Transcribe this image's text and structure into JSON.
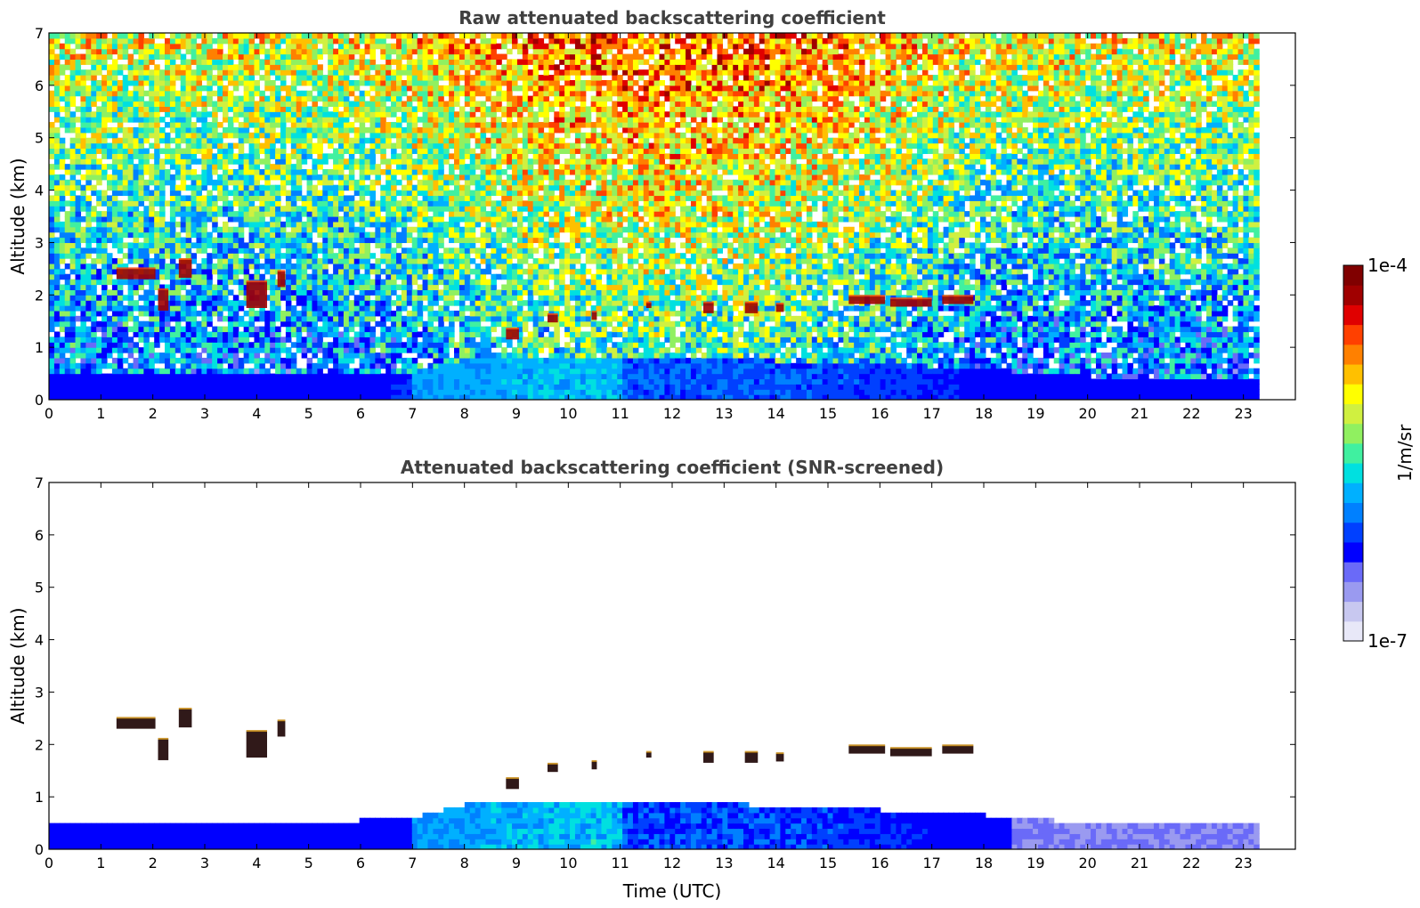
{
  "chart_data": [
    {
      "type": "heatmap",
      "title": "Raw attenuated backscattering coefficient",
      "xlabel": "",
      "ylabel": "Altitude (km)",
      "xlim": [
        0,
        24
      ],
      "ylim": [
        0,
        7
      ],
      "xticks": [
        "0",
        "1",
        "2",
        "3",
        "4",
        "5",
        "6",
        "7",
        "8",
        "9",
        "10",
        "11",
        "12",
        "13",
        "14",
        "15",
        "16",
        "17",
        "18",
        "19",
        "20",
        "21",
        "22",
        "23"
      ],
      "yticks": [
        "0",
        "1",
        "2",
        "3",
        "4",
        "5",
        "6"
      ],
      "yticks_top": "7",
      "data_end_hour": 23.3,
      "boundary_layer_top_km": [
        {
          "t": 0,
          "z": 0.55
        },
        {
          "t": 6,
          "z": 0.55
        },
        {
          "t": 7,
          "z": 0.6
        },
        {
          "t": 8,
          "z": 0.85
        },
        {
          "t": 9,
          "z": 0.9
        },
        {
          "t": 12,
          "z": 0.9
        },
        {
          "t": 15,
          "z": 0.8
        },
        {
          "t": 18,
          "z": 0.65
        },
        {
          "t": 20,
          "z": 0.5
        },
        {
          "t": 23.3,
          "z": 0.45
        }
      ],
      "cloud_layers": [
        {
          "t0": 1.3,
          "t1": 2.05,
          "z": 2.4,
          "dz": 0.2
        },
        {
          "t0": 2.1,
          "t1": 2.3,
          "z": 1.9,
          "dz": 0.4
        },
        {
          "t0": 2.5,
          "t1": 2.75,
          "z": 2.5,
          "dz": 0.35
        },
        {
          "t0": 3.8,
          "t1": 4.2,
          "z": 2.0,
          "dz": 0.5
        },
        {
          "t0": 4.4,
          "t1": 4.55,
          "z": 2.3,
          "dz": 0.3
        },
        {
          "t0": 8.8,
          "t1": 9.05,
          "z": 1.25,
          "dz": 0.2
        },
        {
          "t0": 9.6,
          "t1": 9.8,
          "z": 1.55,
          "dz": 0.15
        },
        {
          "t0": 10.45,
          "t1": 10.55,
          "z": 1.6,
          "dz": 0.15
        },
        {
          "t0": 11.5,
          "t1": 11.6,
          "z": 1.8,
          "dz": 0.1
        },
        {
          "t0": 12.6,
          "t1": 12.8,
          "z": 1.75,
          "dz": 0.2
        },
        {
          "t0": 13.4,
          "t1": 13.65,
          "z": 1.75,
          "dz": 0.2
        },
        {
          "t0": 14.0,
          "t1": 14.15,
          "z": 1.75,
          "dz": 0.15
        },
        {
          "t0": 15.4,
          "t1": 16.1,
          "z": 1.9,
          "dz": 0.15
        },
        {
          "t0": 16.2,
          "t1": 17.0,
          "z": 1.85,
          "dz": 0.15
        },
        {
          "t0": 17.2,
          "t1": 17.8,
          "z": 1.9,
          "dz": 0.15
        }
      ]
    },
    {
      "type": "heatmap",
      "title": "Attenuated backscattering coefficient (SNR-screened)",
      "xlabel": "Time (UTC)",
      "ylabel": "Altitude (km)",
      "xlim": [
        0,
        24
      ],
      "ylim": [
        0,
        7
      ],
      "xticks": [
        "0",
        "1",
        "2",
        "3",
        "4",
        "5",
        "6",
        "7",
        "8",
        "9",
        "10",
        "11",
        "12",
        "13",
        "14",
        "15",
        "16",
        "17",
        "18",
        "19",
        "20",
        "21",
        "22",
        "23"
      ],
      "yticks": [
        "0",
        "1",
        "2",
        "3",
        "4",
        "5",
        "6"
      ],
      "yticks_top": "7",
      "data_end_hour": 23.3
    }
  ],
  "colorbar": {
    "max_label": "1e-4",
    "min_label": "1e-7",
    "unit_label": "1/m/sr",
    "colors": [
      "#e8e8f8",
      "#c8c8f0",
      "#9a9af0",
      "#6a6af8",
      "#0000ff",
      "#0040ff",
      "#0080ff",
      "#00b0ff",
      "#00e0e0",
      "#40f0a0",
      "#90f060",
      "#d0f040",
      "#ffff00",
      "#ffc000",
      "#ff8000",
      "#ff4000",
      "#e00000",
      "#a00000",
      "#800000"
    ]
  }
}
